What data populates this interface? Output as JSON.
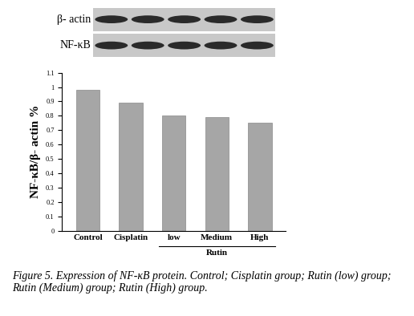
{
  "chart_data": {
    "type": "bar",
    "y_label": "NF-κB/β- actin %",
    "categories": [
      "Control",
      "Cisplatin",
      "low",
      "Medium",
      "High"
    ],
    "values": [
      0.98,
      0.89,
      0.8,
      0.79,
      0.75
    ],
    "color": "#a6a6a6",
    "ylim": [
      0,
      1.1
    ],
    "yticks": [
      0,
      0.1,
      0.2,
      0.3,
      0.4,
      0.5,
      0.6,
      0.7,
      0.8,
      0.9,
      1,
      1.1
    ],
    "grid": false,
    "group_labels": [
      {
        "label": "Rutin",
        "categories": [
          "low",
          "Medium",
          "High"
        ]
      }
    ]
  },
  "blot": {
    "rows": [
      "β- actin",
      "NF-κB"
    ]
  },
  "caption": "Figure 5. Expression of NF-κB protein. Control; Cisplatin group; Rutin (low) group; Rutin (Medium) group; Rutin (High) group."
}
